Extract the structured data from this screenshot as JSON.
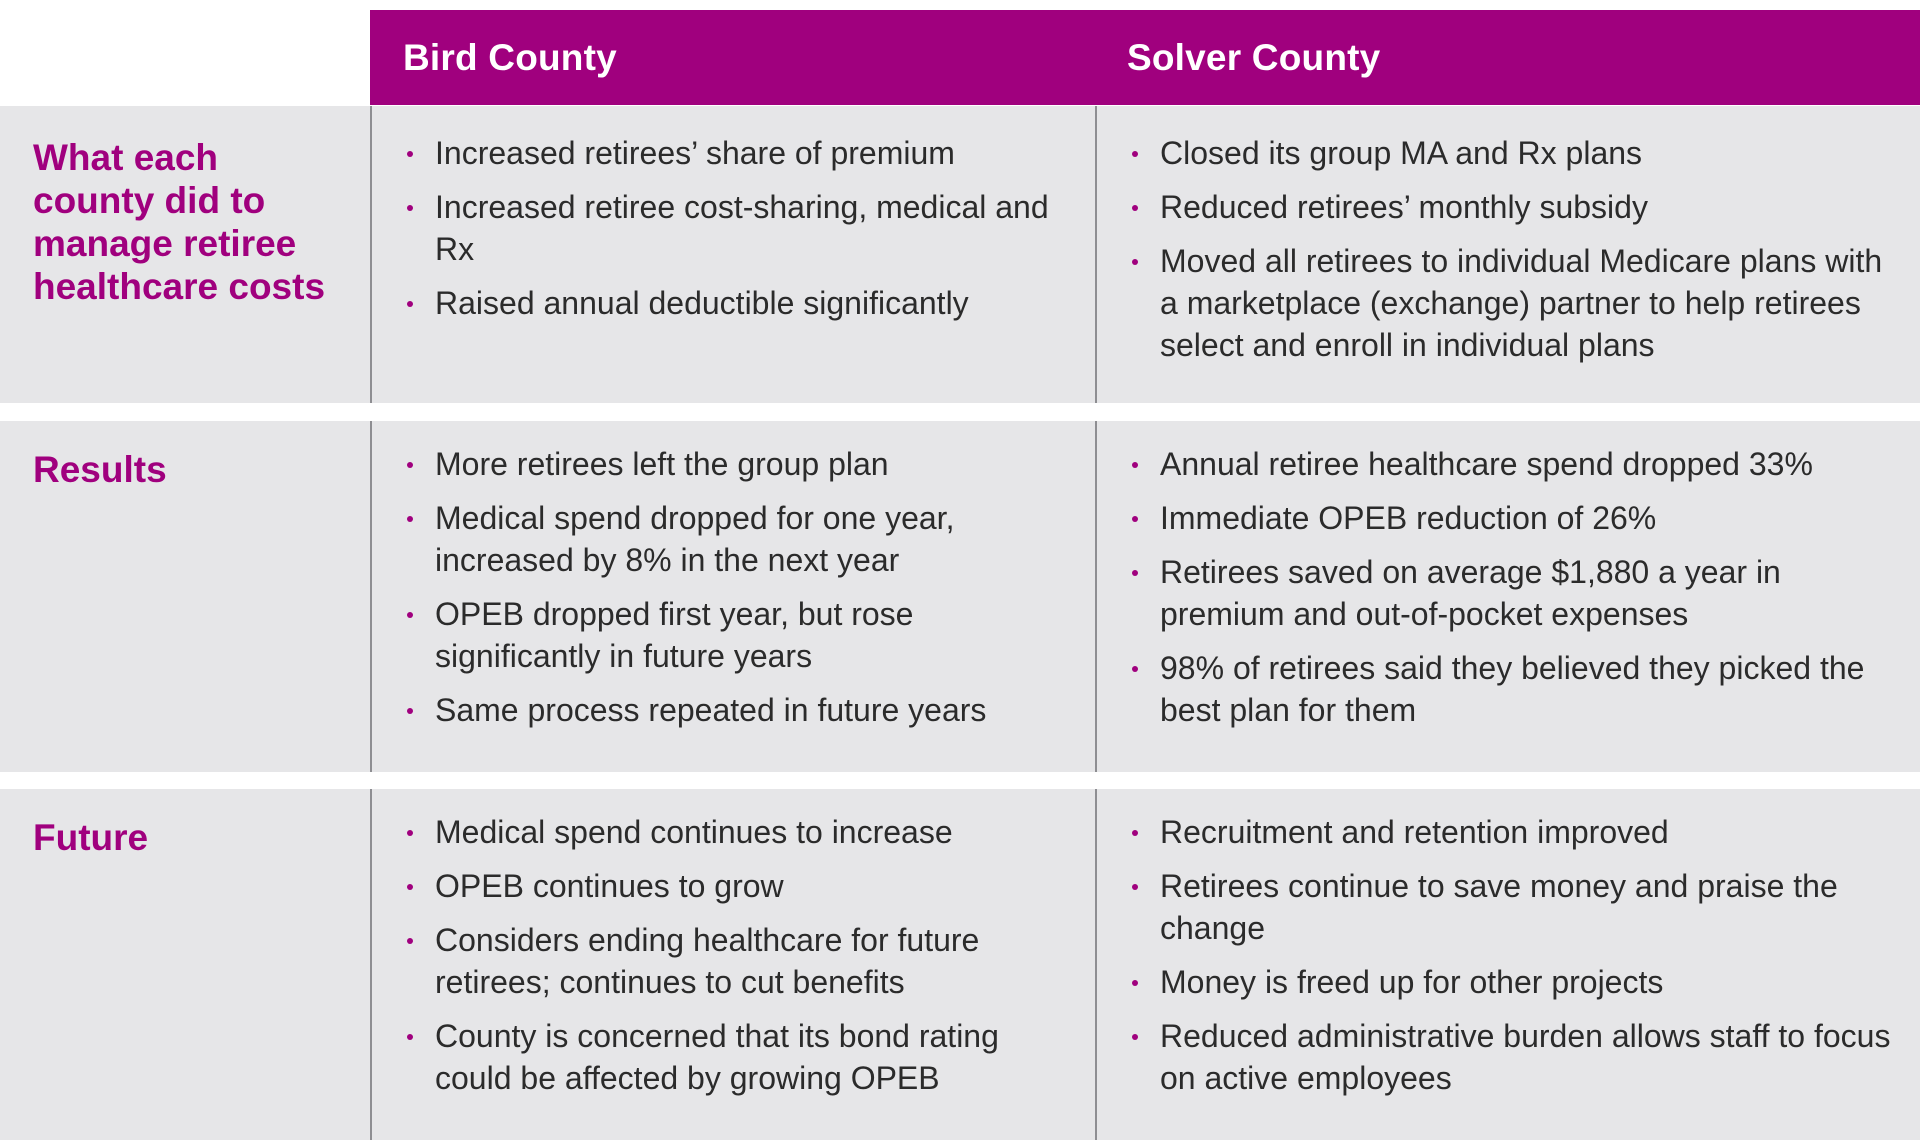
{
  "header": {
    "bird": "Bird County",
    "solver": "Solver County"
  },
  "colors": {
    "accent": "#a0007e",
    "row_bg": "#e6e6e8",
    "divider": "#8e8e92",
    "text": "#2b2b2b"
  },
  "rows": [
    {
      "label": "What each county did to manage retiree healthcare costs",
      "bird": [
        "Increased retirees’ share of premium",
        "Increased retiree cost-sharing, medical and Rx",
        "Raised annual deductible significantly"
      ],
      "solver": [
        "Closed its group MA and Rx plans",
        "Reduced retirees’ monthly subsidy",
        "Moved all retirees to individual Medicare plans with a marketplace (exchange) partner to help retirees select and enroll in individual plans"
      ]
    },
    {
      "label": "Results",
      "bird": [
        "More retirees left the group plan",
        "Medical spend dropped for one year, increased by 8% in the next year",
        "OPEB dropped first year, but rose significantly in future years",
        "Same process repeated in future years"
      ],
      "solver": [
        "Annual retiree healthcare spend dropped 33%",
        "Immediate OPEB reduction of 26%",
        "Retirees saved on average $1,880 a year in premium and out-of-pocket expenses",
        "98% of retirees said they believed they picked the best plan for them"
      ]
    },
    {
      "label": "Future",
      "bird": [
        "Medical spend continues to increase",
        "OPEB continues to grow",
        "Considers ending healthcare for future retirees; continues to cut benefits",
        "County is concerned that its bond rating could be affected by growing OPEB"
      ],
      "solver": [
        "Recruitment and retention improved",
        "Retirees continue to save money and praise the change",
        "Money is freed up for other projects",
        "Reduced administrative burden allows staff to focus on active employees"
      ]
    }
  ]
}
